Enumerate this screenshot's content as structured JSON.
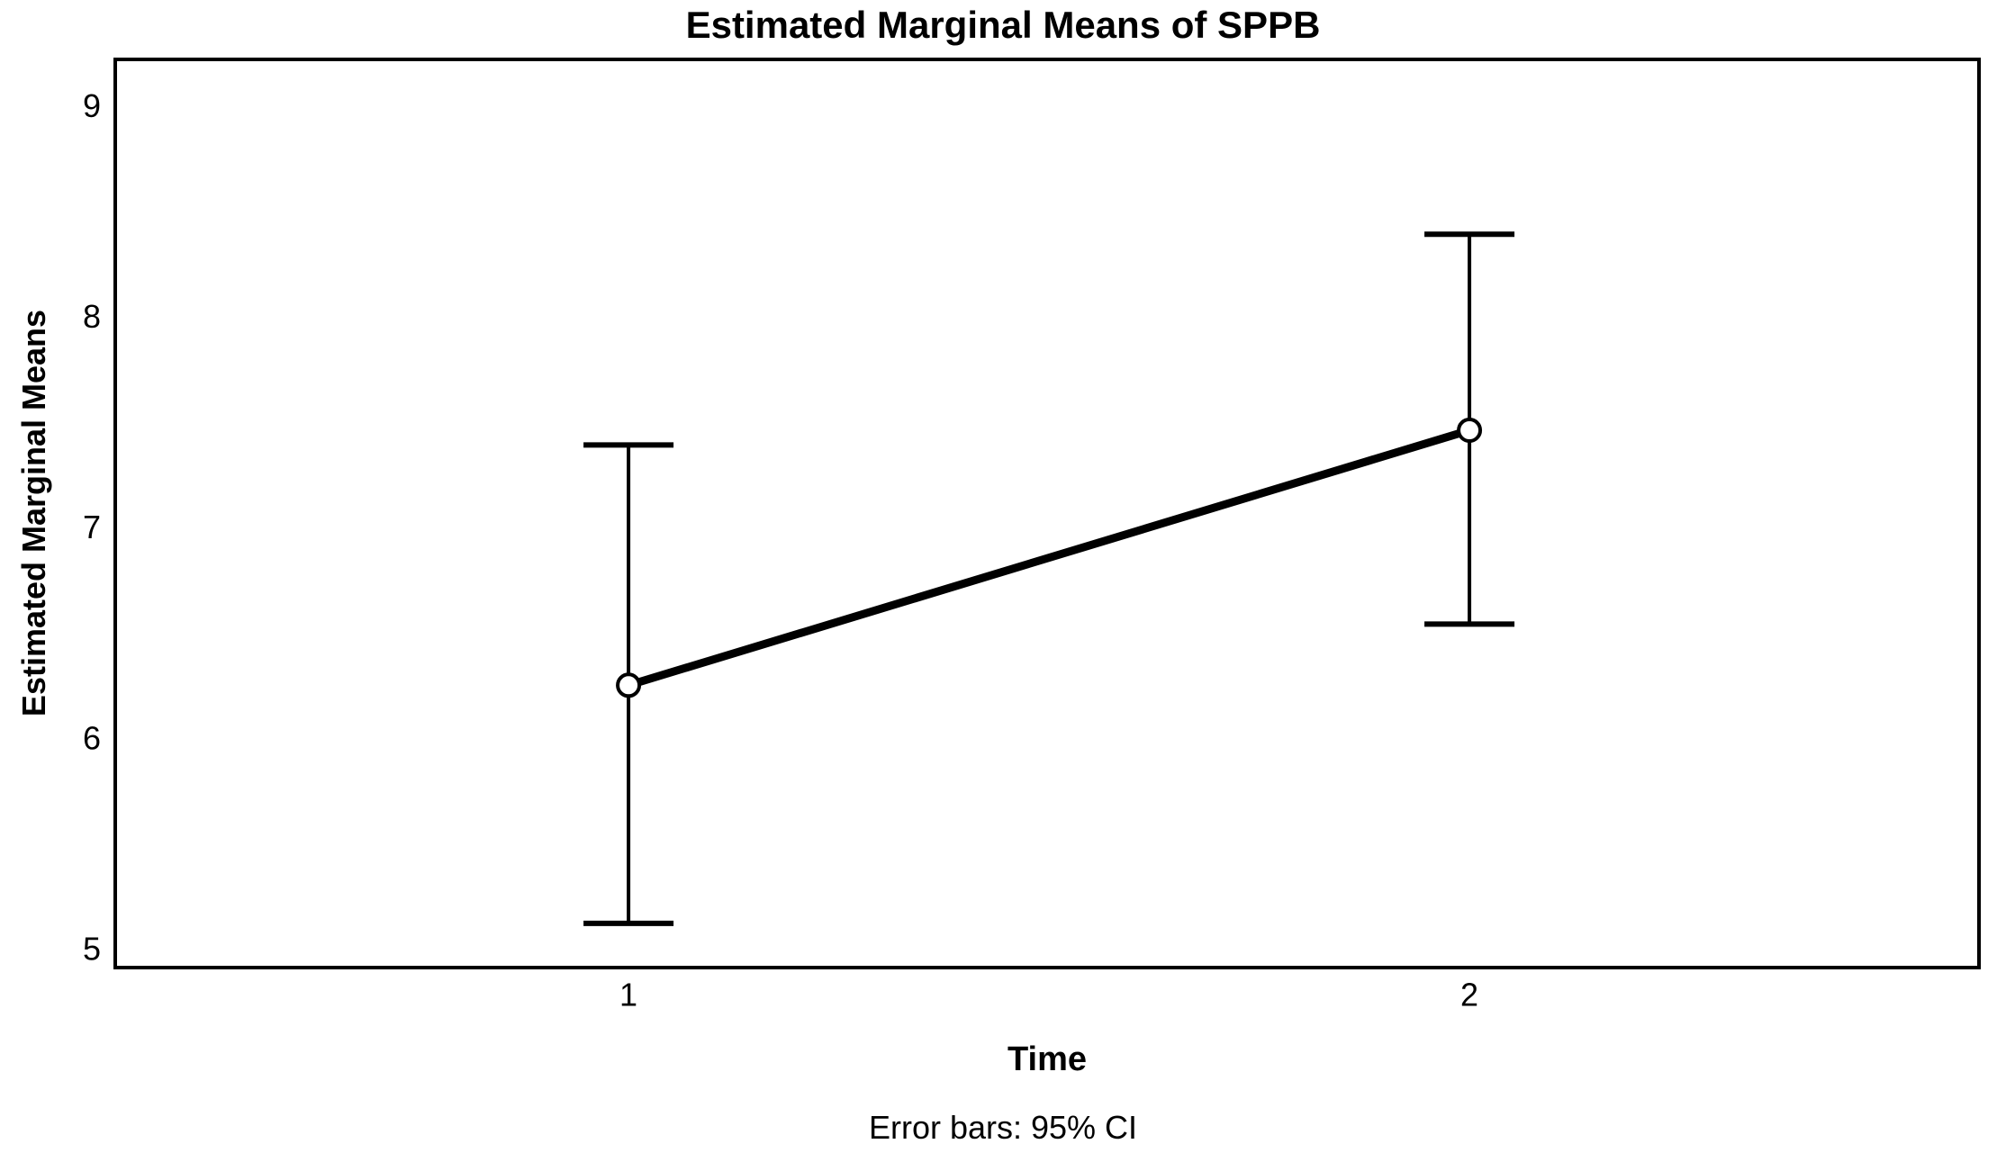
{
  "chart_data": {
    "type": "line",
    "title": "Estimated Marginal Means of SPPB",
    "xlabel": "Time",
    "ylabel": "Estimated Marginal Means",
    "caption": "Error bars: 95% CI",
    "error_bars": "95% CI",
    "categories": [
      "1",
      "2"
    ],
    "series": [
      {
        "name": "SPPB estimated marginal means",
        "values": [
          6.25,
          7.46
        ],
        "ci_lower": [
          5.12,
          6.54
        ],
        "ci_upper": [
          7.39,
          8.39
        ]
      }
    ],
    "yticks": [
      5,
      6,
      7,
      8,
      9
    ],
    "ylim": [
      4.91,
      9.22
    ],
    "grid": false,
    "legend": false,
    "colors": {
      "line": "#000000",
      "marker_fill": "#ffffff",
      "text": "#000000",
      "frame": "#000000",
      "background": "#ffffff"
    }
  }
}
